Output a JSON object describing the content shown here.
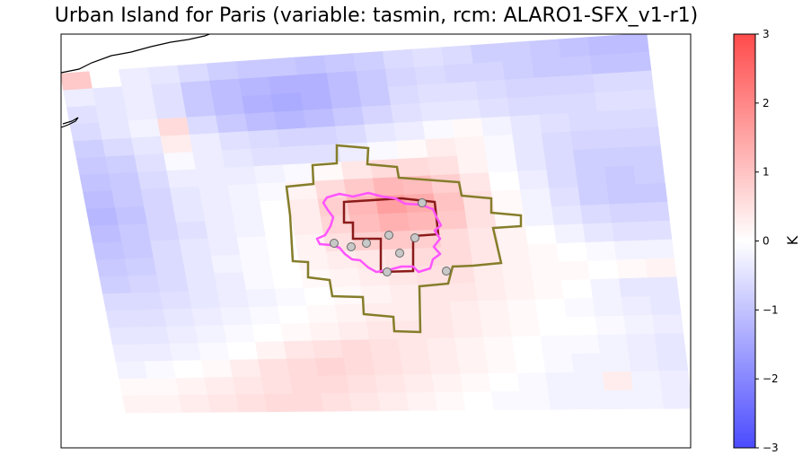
{
  "title": "Urban Island for Paris (variable: tasmin, rcm: ALARO1-SFX_v1-r1)",
  "colorbar": {
    "label": "K",
    "min": -3,
    "max": 3,
    "ticks": [
      "3",
      "2",
      "1",
      "0",
      "−1",
      "−2",
      "−3"
    ],
    "tick_values": [
      3,
      2,
      1,
      0,
      -1,
      -2,
      -3
    ],
    "colors": {
      "low": "#4b4bff",
      "mid": "#ffffff",
      "high": "#ff4b4b"
    }
  },
  "map": {
    "rows": 20,
    "cols": 20,
    "grid_values": [
      [
        0.9,
        0.0,
        -0.3,
        -0.4,
        -0.6,
        -0.8,
        -0.9,
        -0.9,
        -1.0,
        -0.9,
        -0.8,
        -0.6,
        -0.5,
        -0.6,
        -0.8,
        -0.8,
        -0.9,
        -1.0,
        -1.1,
        -1.1
      ],
      [
        -0.3,
        -0.4,
        -0.3,
        -0.5,
        -0.9,
        -1.1,
        -1.2,
        -1.3,
        -1.3,
        -1.1,
        -0.9,
        -0.7,
        -0.6,
        -0.7,
        -0.7,
        -0.8,
        -0.9,
        -0.9,
        -1.0,
        -1.0
      ],
      [
        -0.5,
        -0.4,
        -0.3,
        -0.5,
        -0.9,
        -1.1,
        -1.3,
        -1.4,
        -1.3,
        -1.1,
        -0.9,
        -0.6,
        -0.5,
        -0.5,
        -0.6,
        -0.7,
        -0.7,
        -0.7,
        -0.6,
        -0.6
      ],
      [
        -0.6,
        -0.4,
        -0.2,
        0.6,
        -0.6,
        -0.9,
        -1.1,
        -1.2,
        -1.1,
        -0.9,
        -0.7,
        -0.5,
        -0.4,
        -0.4,
        -0.5,
        -0.6,
        -0.6,
        -0.6,
        -0.5,
        -0.5
      ],
      [
        -0.8,
        -0.6,
        -0.4,
        0.3,
        -0.3,
        -0.5,
        -0.6,
        -0.7,
        -0.7,
        -0.6,
        -0.4,
        -0.3,
        -0.1,
        0.1,
        -0.2,
        -0.4,
        -0.5,
        -0.6,
        -0.6,
        -0.6
      ],
      [
        -0.9,
        -0.8,
        -0.5,
        -0.1,
        -0.3,
        -0.4,
        -0.5,
        -0.5,
        -0.5,
        -0.3,
        -0.1,
        0.1,
        0.3,
        0.2,
        -0.1,
        -0.4,
        -0.6,
        -0.7,
        -0.7,
        -0.7
      ],
      [
        -1.0,
        -0.9,
        -0.6,
        -0.3,
        -0.3,
        -0.3,
        -0.2,
        -0.1,
        0.1,
        0.4,
        0.6,
        0.6,
        0.5,
        0.2,
        -0.1,
        -0.4,
        -0.6,
        -0.8,
        -0.8,
        -0.8
      ],
      [
        -1.1,
        -0.9,
        -0.7,
        -0.4,
        -0.3,
        -0.2,
        -0.1,
        0.2,
        0.6,
        0.9,
        1.2,
        1.1,
        0.8,
        0.4,
        0.0,
        -0.3,
        -0.6,
        -0.8,
        -0.9,
        -0.8
      ],
      [
        -1.2,
        -1.0,
        -0.7,
        -0.4,
        -0.3,
        -0.2,
        0.0,
        0.3,
        0.8,
        1.2,
        1.6,
        1.4,
        1.0,
        0.5,
        0.1,
        -0.2,
        -0.5,
        -0.8,
        -0.9,
        -0.9
      ],
      [
        -1.1,
        -0.9,
        -0.7,
        -0.5,
        -0.3,
        -0.2,
        0.0,
        0.3,
        0.7,
        1.1,
        1.3,
        1.2,
        0.9,
        0.5,
        0.1,
        -0.2,
        -0.4,
        -0.6,
        -0.7,
        -0.7
      ],
      [
        -1.0,
        -0.9,
        -0.6,
        -0.4,
        -0.3,
        -0.1,
        0.0,
        0.2,
        0.5,
        0.8,
        0.9,
        0.8,
        0.6,
        0.4,
        0.2,
        0.0,
        -0.2,
        -0.4,
        -0.5,
        -0.5
      ],
      [
        -0.9,
        -0.8,
        -0.6,
        -0.4,
        -0.2,
        -0.1,
        0.0,
        0.2,
        0.3,
        0.4,
        0.5,
        0.6,
        0.6,
        0.4,
        0.2,
        0.1,
        0.0,
        -0.1,
        -0.2,
        -0.2
      ],
      [
        -0.8,
        -0.7,
        -0.6,
        -0.4,
        -0.3,
        -0.1,
        0.0,
        0.1,
        0.2,
        0.3,
        0.4,
        0.5,
        0.5,
        0.3,
        0.2,
        0.1,
        0.1,
        0.0,
        0.1,
        0.2
      ],
      [
        -0.6,
        -0.6,
        -0.5,
        -0.4,
        -0.3,
        -0.2,
        -0.1,
        0.0,
        0.1,
        0.2,
        0.3,
        0.4,
        0.4,
        0.3,
        0.2,
        0.1,
        0.0,
        -0.2,
        -0.4,
        -0.4
      ],
      [
        -0.5,
        -0.5,
        -0.4,
        -0.3,
        -0.2,
        -0.1,
        0.0,
        0.1,
        0.2,
        0.3,
        0.3,
        0.4,
        0.3,
        0.2,
        0.1,
        0.0,
        -0.1,
        -0.2,
        -0.3,
        -0.4
      ],
      [
        -0.4,
        -0.4,
        -0.3,
        -0.2,
        -0.1,
        0.0,
        0.1,
        0.2,
        0.3,
        0.4,
        0.4,
        0.4,
        0.3,
        0.2,
        0.1,
        0.0,
        0.0,
        -0.1,
        -0.2,
        -0.3
      ],
      [
        -0.3,
        -0.3,
        -0.2,
        -0.1,
        0.0,
        0.2,
        0.4,
        0.5,
        0.6,
        0.5,
        0.4,
        0.3,
        0.2,
        0.1,
        0.0,
        -0.1,
        -0.1,
        -0.2,
        -0.3,
        -0.4
      ],
      [
        -0.2,
        -0.1,
        0.0,
        0.1,
        0.3,
        0.5,
        0.6,
        0.7,
        0.6,
        0.5,
        0.4,
        0.3,
        0.2,
        0.1,
        0.0,
        -0.1,
        -0.2,
        -0.2,
        -0.3,
        -0.4
      ],
      [
        0.1,
        0.1,
        0.2,
        0.3,
        0.4,
        0.5,
        0.6,
        0.6,
        0.5,
        0.4,
        0.3,
        0.2,
        0.1,
        0.0,
        -0.1,
        -0.2,
        -0.2,
        0.3,
        -0.2,
        -0.3
      ],
      [
        0.2,
        0.2,
        0.3,
        0.4,
        0.5,
        0.6,
        0.6,
        0.5,
        0.4,
        0.3,
        0.2,
        0.1,
        0.0,
        -0.1,
        -0.1,
        -0.2,
        -0.2,
        -0.2,
        -0.2,
        -0.3
      ]
    ],
    "city_marker_count": 9,
    "colors": {
      "dark_red_outline": "#8b1a1a",
      "olive_outline": "#857d2a",
      "magenta_outline": "#ff55ff",
      "marker_fill": "#c8c8c8",
      "marker_stroke": "#666666",
      "coastline": "#000000"
    }
  }
}
